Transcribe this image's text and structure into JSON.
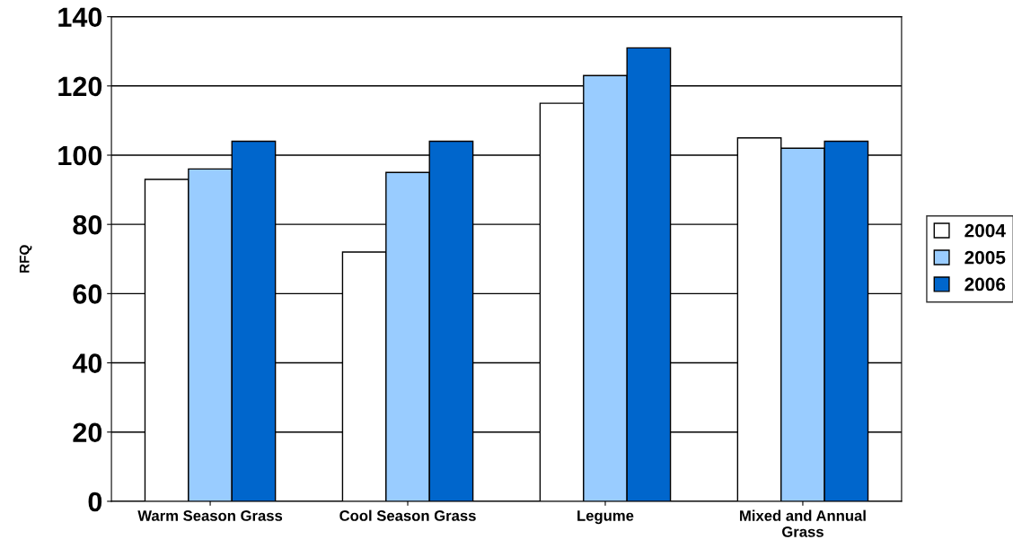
{
  "chart_data": {
    "type": "bar",
    "ylabel": "RFQ",
    "categories": [
      "Warm Season Grass",
      "Cool Season Grass",
      "Legume",
      "Mixed and Annual\nGrass"
    ],
    "series": [
      {
        "name": "2004",
        "color": "#ffffff",
        "values": [
          93,
          72,
          115,
          105
        ]
      },
      {
        "name": "2005",
        "color": "#99ccff",
        "values": [
          96,
          95,
          123,
          102
        ]
      },
      {
        "name": "2006",
        "color": "#0066cc",
        "values": [
          104,
          104,
          131,
          104
        ]
      }
    ],
    "ylim": [
      0,
      140
    ],
    "yticks": [
      0,
      20,
      40,
      60,
      80,
      100,
      120,
      140
    ],
    "grid": "y",
    "legend": "right"
  }
}
